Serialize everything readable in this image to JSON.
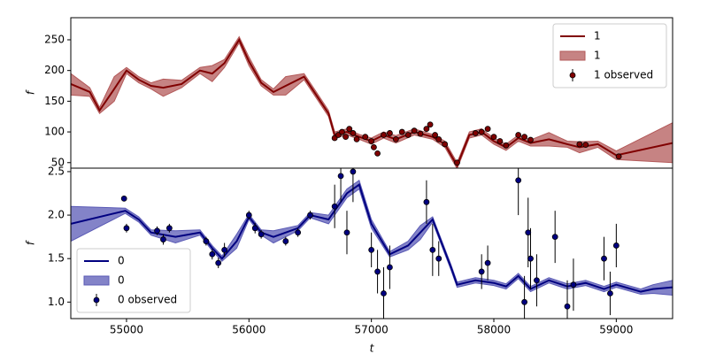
{
  "chart_data": [
    {
      "type": "line",
      "ylabel": "f",
      "legend": "upper right",
      "xlim": [
        54545,
        59460
      ],
      "ylim": [
        41,
        286
      ],
      "yticks": [
        50,
        100,
        150,
        200,
        250
      ],
      "series": [
        {
          "name": "1",
          "kind": "line",
          "color": "#800000",
          "x": [
            54545,
            54700,
            54780,
            54900,
            55000,
            55100,
            55200,
            55300,
            55450,
            55600,
            55700,
            55800,
            55920,
            56000,
            56100,
            56200,
            56300,
            56450,
            56550,
            56650,
            56700,
            56800,
            56900,
            57000,
            57100,
            57200,
            57350,
            57500,
            57600,
            57700,
            57800,
            57900,
            58000,
            58100,
            58200,
            58300,
            58450,
            58600,
            58700,
            58850,
            59000,
            59460
          ],
          "values": [
            178,
            165,
            135,
            170,
            200,
            185,
            175,
            172,
            178,
            200,
            195,
            212,
            250,
            215,
            180,
            165,
            175,
            190,
            160,
            130,
            95,
            100,
            92,
            85,
            95,
            88,
            100,
            92,
            80,
            45,
            95,
            100,
            85,
            75,
            90,
            82,
            88,
            80,
            75,
            80,
            62,
            82
          ]
        },
        {
          "name": "1",
          "kind": "band",
          "color": "#b35959",
          "x": [
            54545,
            54700,
            54780,
            54900,
            55000,
            55100,
            55200,
            55300,
            55450,
            55600,
            55700,
            55800,
            55920,
            56000,
            56100,
            56200,
            56300,
            56450,
            56550,
            56650,
            56700,
            56800,
            56900,
            57000,
            57100,
            57200,
            57350,
            57500,
            57600,
            57700,
            57800,
            57900,
            58000,
            58100,
            58200,
            58300,
            58450,
            58600,
            58700,
            58850,
            59000,
            59460
          ],
          "lower": [
            160,
            158,
            130,
            150,
            195,
            180,
            170,
            158,
            172,
            195,
            182,
            205,
            245,
            208,
            175,
            160,
            160,
            185,
            155,
            125,
            90,
            95,
            88,
            80,
            90,
            82,
            95,
            88,
            75,
            40,
            90,
            95,
            80,
            70,
            85,
            77,
            77,
            75,
            66,
            75,
            55,
            50
          ],
          "upper": [
            195,
            172,
            140,
            190,
            205,
            190,
            180,
            186,
            184,
            205,
            208,
            218,
            255,
            222,
            185,
            170,
            190,
            195,
            165,
            135,
            100,
            105,
            96,
            90,
            100,
            94,
            105,
            96,
            85,
            50,
            100,
            105,
            90,
            80,
            95,
            87,
            99,
            85,
            84,
            85,
            69,
            115
          ]
        },
        {
          "name": "1 observed",
          "kind": "errorbar",
          "color": "#800000",
          "x": [
            56700,
            56730,
            56760,
            56790,
            56820,
            56850,
            56880,
            56950,
            57000,
            57020,
            57050,
            57100,
            57150,
            57200,
            57250,
            57300,
            57350,
            57400,
            57450,
            57480,
            57520,
            57550,
            57600,
            57700,
            57850,
            57900,
            57950,
            58000,
            58050,
            58100,
            58200,
            58250,
            58300,
            58700,
            58750,
            59020
          ],
          "values": [
            90,
            95,
            100,
            92,
            105,
            98,
            88,
            92,
            85,
            75,
            65,
            95,
            98,
            88,
            100,
            95,
            102,
            97,
            105,
            112,
            95,
            88,
            80,
            50,
            98,
            100,
            105,
            92,
            85,
            78,
            95,
            92,
            87,
            80,
            79,
            60
          ],
          "errors": [
            4,
            4,
            4,
            4,
            4,
            4,
            4,
            4,
            4,
            4,
            4,
            4,
            4,
            4,
            4,
            4,
            4,
            4,
            4,
            4,
            4,
            4,
            4,
            4,
            4,
            4,
            4,
            4,
            4,
            4,
            4,
            4,
            4,
            4,
            4,
            4
          ]
        }
      ]
    },
    {
      "type": "line",
      "ylabel": "f",
      "xlabel": "t",
      "legend": "lower left",
      "xlim": [
        54545,
        59460
      ],
      "ylim": [
        0.81,
        2.54
      ],
      "xticks": [
        55000,
        56000,
        57000,
        58000,
        59000
      ],
      "yticks": [
        {
          "value": 1,
          "label": "1.0"
        },
        {
          "value": 1.5,
          "label": "1.5"
        },
        {
          "value": 2,
          "label": "2.0"
        },
        {
          "value": 2.5,
          "label": "2.5"
        }
      ],
      "series": [
        {
          "name": "0",
          "kind": "line",
          "color": "#000080",
          "x": [
            54545,
            54990,
            55100,
            55200,
            55400,
            55600,
            55700,
            55780,
            55900,
            56000,
            56100,
            56200,
            56400,
            56500,
            56650,
            56800,
            56900,
            57000,
            57150,
            57300,
            57400,
            57500,
            57650,
            57700,
            57850,
            58000,
            58100,
            58200,
            58300,
            58450,
            58600,
            58750,
            58900,
            59000,
            59200,
            59300,
            59460
          ],
          "values": [
            1.9,
            2.05,
            1.95,
            1.8,
            1.75,
            1.8,
            1.62,
            1.5,
            1.7,
            1.98,
            1.8,
            1.75,
            1.85,
            2.0,
            1.95,
            2.25,
            2.35,
            1.9,
            1.55,
            1.65,
            1.8,
            1.95,
            1.4,
            1.2,
            1.25,
            1.22,
            1.18,
            1.3,
            1.15,
            1.25,
            1.18,
            1.22,
            1.15,
            1.2,
            1.12,
            1.15,
            1.17
          ]
        },
        {
          "name": "0",
          "kind": "band",
          "color": "#5a5ab5",
          "x": [
            54545,
            54990,
            55100,
            55200,
            55400,
            55600,
            55700,
            55780,
            55900,
            56000,
            56100,
            56200,
            56400,
            56500,
            56650,
            56800,
            56900,
            57000,
            57150,
            57300,
            57400,
            57500,
            57650,
            57700,
            57850,
            58000,
            58100,
            58200,
            58300,
            58450,
            58600,
            58750,
            58900,
            59000,
            59200,
            59300,
            59460
          ],
          "lower": [
            1.7,
            2.02,
            1.92,
            1.77,
            1.68,
            1.77,
            1.59,
            1.47,
            1.62,
            1.95,
            1.77,
            1.68,
            1.82,
            1.97,
            1.9,
            2.2,
            2.3,
            1.85,
            1.52,
            1.6,
            1.72,
            1.92,
            1.37,
            1.17,
            1.22,
            1.19,
            1.15,
            1.27,
            1.12,
            1.22,
            1.15,
            1.19,
            1.12,
            1.17,
            1.09,
            1.1,
            1.08
          ],
          "upper": [
            2.1,
            2.08,
            1.98,
            1.83,
            1.82,
            1.83,
            1.65,
            1.53,
            1.78,
            2.01,
            1.83,
            1.82,
            1.88,
            2.03,
            2.0,
            2.3,
            2.4,
            1.95,
            1.58,
            1.7,
            1.88,
            1.98,
            1.43,
            1.23,
            1.28,
            1.25,
            1.21,
            1.33,
            1.18,
            1.28,
            1.21,
            1.25,
            1.18,
            1.23,
            1.15,
            1.2,
            1.25
          ]
        },
        {
          "name": "0 observed",
          "kind": "errorbar",
          "color": "#000080",
          "x": [
            54980,
            55000,
            55250,
            55300,
            55350,
            55650,
            55700,
            55750,
            55800,
            56000,
            56050,
            56100,
            56300,
            56400,
            56500,
            56700,
            56750,
            56800,
            56850,
            57000,
            57050,
            57100,
            57150,
            57450,
            57500,
            57550,
            57900,
            57950,
            58200,
            58250,
            58280,
            58300,
            58350,
            58500,
            58600,
            58650,
            58900,
            58950,
            59000
          ],
          "values": [
            2.19,
            1.85,
            1.82,
            1.72,
            1.85,
            1.7,
            1.55,
            1.45,
            1.6,
            2.0,
            1.85,
            1.78,
            1.7,
            1.8,
            2.0,
            2.1,
            2.45,
            1.8,
            2.5,
            1.6,
            1.35,
            1.1,
            1.4,
            2.15,
            1.6,
            1.5,
            1.35,
            1.45,
            2.4,
            1.0,
            1.8,
            1.5,
            1.25,
            1.75,
            0.95,
            1.2,
            1.5,
            1.1,
            1.65
          ],
          "errors": [
            0.03,
            0.05,
            0.05,
            0.06,
            0.05,
            0.05,
            0.06,
            0.06,
            0.08,
            0.05,
            0.06,
            0.05,
            0.05,
            0.05,
            0.05,
            0.25,
            0.3,
            0.25,
            0.35,
            0.2,
            0.25,
            0.3,
            0.25,
            0.25,
            0.3,
            0.2,
            0.2,
            0.2,
            0.4,
            0.3,
            0.4,
            0.35,
            0.3,
            0.3,
            0.3,
            0.3,
            0.25,
            0.25,
            0.25
          ]
        }
      ]
    }
  ]
}
